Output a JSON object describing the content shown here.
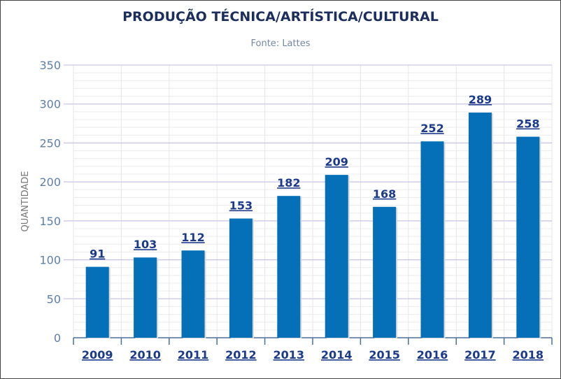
{
  "chart_data": {
    "type": "bar",
    "title": "PRODUÇÃO TÉCNICA/ARTÍSTICA/CULTURAL",
    "subtitle": "Fonte: Lattes",
    "xlabel": "",
    "ylabel": "QUANTIDADE",
    "categories": [
      "2009",
      "2010",
      "2011",
      "2012",
      "2013",
      "2014",
      "2015",
      "2016",
      "2017",
      "2018"
    ],
    "values": [
      91,
      103,
      112,
      153,
      182,
      209,
      168,
      252,
      289,
      258
    ],
    "ylim": [
      0,
      350
    ],
    "yticks": [
      0,
      50,
      100,
      150,
      200,
      250,
      300,
      350
    ],
    "grid": true,
    "bar_color": "#0570b8",
    "label_color": "#1c3a8a"
  }
}
